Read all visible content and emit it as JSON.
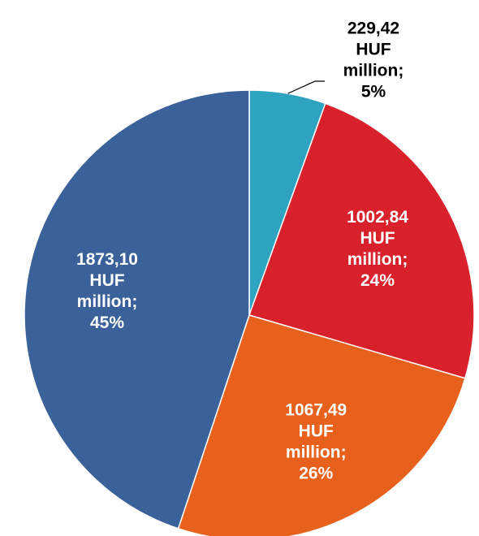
{
  "chart_data": {
    "type": "pie",
    "unit": "HUF million;",
    "values": [
      229.42,
      1002.84,
      1067.49,
      1873.1
    ],
    "value_labels": [
      "229,42",
      "1002,84",
      "1067,49",
      "1873,10"
    ],
    "percentages": [
      5,
      24,
      26,
      45
    ],
    "percentage_labels": [
      "5%",
      "24%",
      "26%",
      "45%"
    ],
    "colors": [
      "#2ea3bf",
      "#d9212b",
      "#e8611c",
      "#3a6199"
    ]
  }
}
